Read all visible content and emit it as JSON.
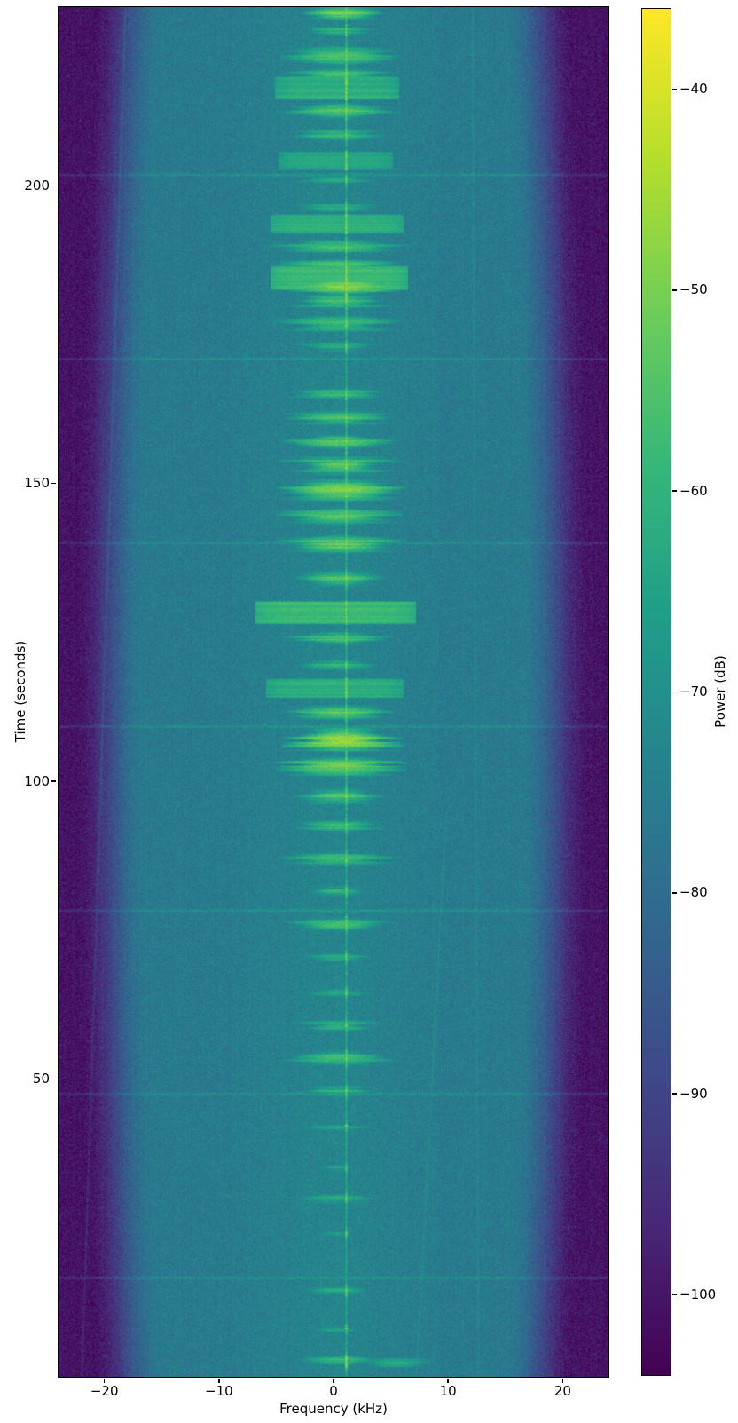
{
  "chart_data": {
    "type": "heatmap",
    "subtype": "spectrogram",
    "title": "",
    "xlabel": "Frequency (kHz)",
    "ylabel": "Time (seconds)",
    "colorbar_label": "Power (dB)",
    "xlim": [
      -24,
      24
    ],
    "ylim": [
      0,
      230
    ],
    "x_ticks": [
      -20,
      -10,
      0,
      10,
      20
    ],
    "y_ticks": [
      50,
      100,
      150,
      200
    ],
    "colorbar_ticks": [
      -40,
      -50,
      -60,
      -70,
      -80,
      -90,
      -100
    ],
    "color_limits_db": [
      -104,
      -36
    ],
    "colormap": "viridis",
    "grid": false,
    "legend": "none",
    "content": {
      "seed": 1337,
      "background_db": -76,
      "edge_db": -100.5,
      "edge_start_khz": 14.8,
      "edge_mid_extra_khz": 1.6,
      "edge_span_khz": 6.2,
      "center_haze_db": 3.0,
      "center_haze_sigma_khz": 6.5,
      "noise_db": 4.6,
      "carrier": {
        "freq_khz": 1.15,
        "base_db": -64,
        "active_boost_db": 17,
        "jitter_db": 6
      },
      "scanlines": {
        "times_s": [
          201.8,
          170.9,
          140.0,
          109.2,
          78.3,
          47.5,
          16.6
        ],
        "boost_db": 5.5
      },
      "drift_traces": [
        {
          "f_start_khz": -18.2,
          "f_end_khz": -22.0,
          "t_min": 0,
          "t_max": 230,
          "boost_db": 4.5
        },
        {
          "f_start_khz": 12.1,
          "f_end_khz": 12.6,
          "t_min": 0,
          "t_max": 230,
          "boost_db": 3.5
        },
        {
          "f_start_khz": 9.8,
          "f_end_khz": 7.2,
          "t_min": 0,
          "t_max": 95,
          "boost_db": 3.5
        }
      ],
      "wide_bands": [
        [
          216.4,
          3.2,
          -61,
          0.3,
          5.4
        ],
        [
          204.2,
          2.4,
          -63,
          0.2,
          5.0
        ],
        [
          193.6,
          2.6,
          -61,
          0.3,
          5.8
        ],
        [
          184.5,
          3.4,
          -58,
          0.5,
          6.0
        ],
        [
          128.3,
          3.2,
          -58,
          0.2,
          7.0
        ],
        [
          115.6,
          2.6,
          -61,
          0.1,
          6.0
        ]
      ],
      "events": [
        [
          229.0,
          1.6,
          -51,
          0.8,
          2.0
        ],
        [
          226.0,
          1.2,
          -60,
          0.5,
          2.2
        ],
        [
          221.8,
          2.2,
          -54,
          0.6,
          2.6
        ],
        [
          218.8,
          1.6,
          -58,
          0.5,
          3.0
        ],
        [
          212.5,
          2.2,
          -56,
          0.5,
          2.8
        ],
        [
          208.5,
          1.6,
          -59,
          0.4,
          2.3
        ],
        [
          201.0,
          1.2,
          -62,
          0.3,
          2.0
        ],
        [
          196.3,
          1.4,
          -61,
          0.3,
          2.4
        ],
        [
          189.8,
          1.8,
          -57,
          0.4,
          3.4
        ],
        [
          186.8,
          1.4,
          -58,
          0.4,
          3.2
        ],
        [
          183.2,
          2.2,
          -50,
          1.0,
          2.4
        ],
        [
          180.7,
          2.0,
          -56,
          0.5,
          3.0
        ],
        [
          176.8,
          2.2,
          -57,
          0.4,
          3.0
        ],
        [
          173.0,
          1.4,
          -62,
          0.3,
          2.2
        ],
        [
          165.0,
          1.6,
          -59,
          0.4,
          2.4
        ],
        [
          161.0,
          1.8,
          -57,
          0.5,
          2.8
        ],
        [
          157.0,
          1.8,
          -55,
          0.5,
          2.6
        ],
        [
          153.0,
          2.2,
          -53,
          0.6,
          2.8
        ],
        [
          148.8,
          2.6,
          -51,
          0.7,
          2.8
        ],
        [
          144.5,
          2.2,
          -55,
          0.5,
          2.7
        ],
        [
          139.8,
          2.2,
          -53,
          0.6,
          2.8
        ],
        [
          134.0,
          2.0,
          -56,
          0.5,
          2.6
        ],
        [
          124.0,
          1.7,
          -57,
          0.4,
          2.5
        ],
        [
          119.5,
          1.4,
          -60,
          0.3,
          2.2
        ],
        [
          111.5,
          1.9,
          -55,
          0.5,
          2.6
        ],
        [
          107.0,
          2.8,
          -48,
          0.8,
          2.6
        ],
        [
          102.5,
          2.4,
          -52,
          0.6,
          2.8
        ],
        [
          97.5,
          2.0,
          -56,
          0.5,
          2.6
        ],
        [
          92.5,
          1.6,
          -60,
          0.4,
          2.4
        ],
        [
          87.0,
          1.8,
          -58,
          0.4,
          2.6
        ],
        [
          81.5,
          1.5,
          -61,
          0.3,
          2.2
        ],
        [
          76.0,
          1.8,
          -58,
          0.4,
          2.6
        ],
        [
          70.5,
          1.3,
          -63,
          0.3,
          2.0
        ],
        [
          64.5,
          1.2,
          -62,
          0.3,
          1.8
        ],
        [
          59.0,
          1.5,
          -60,
          0.4,
          2.2
        ],
        [
          53.5,
          1.8,
          -58,
          0.5,
          2.6
        ],
        [
          48.0,
          1.5,
          -61,
          0.4,
          2.2
        ],
        [
          42.0,
          1.0,
          -65,
          0.2,
          1.8
        ],
        [
          35.0,
          1.0,
          -66,
          0.2,
          1.6
        ],
        [
          30.0,
          1.4,
          -62,
          0.3,
          2.0
        ],
        [
          24.0,
          1.0,
          -66,
          0.2,
          1.6
        ],
        [
          14.5,
          1.4,
          -62,
          0.3,
          2.0
        ],
        [
          8.0,
          1.0,
          -65,
          0.2,
          1.6
        ],
        [
          2.8,
          1.4,
          -61,
          0.5,
          2.0
        ],
        [
          2.3,
          1.5,
          -63,
          5.5,
          2.2
        ]
      ]
    }
  }
}
